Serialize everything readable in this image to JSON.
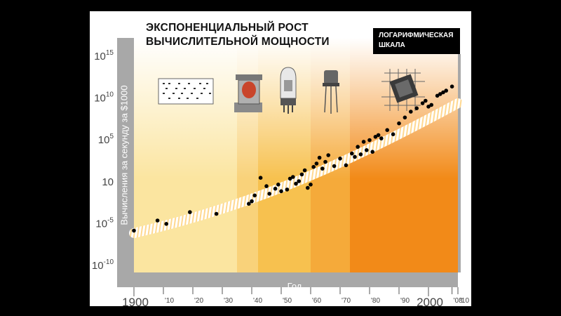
{
  "chart_data": {
    "type": "scatter",
    "title": "ЭКСПОНЕНЦИАЛЬНЫЙ РОСТ",
    "subtitle": "ВЫЧИСЛИТЕЛЬНОЙ МОЩНОСТИ",
    "scale_badge": [
      "ЛОГАРИФМИЧЕСКАЯ",
      "ШКАЛА"
    ],
    "xlabel": "Год",
    "ylabel": "Вычисления за секунду за $1000",
    "y_scale": "log",
    "xlim": [
      1900,
      2010
    ],
    "ylim": [
      -11,
      17
    ],
    "x_ticks": [
      "1900",
      "'10",
      "'20",
      "'30",
      "'40",
      "'50",
      "'60",
      "'70",
      "'80",
      "'90",
      "2000",
      "'08",
      "'10"
    ],
    "y_ticks": [
      {
        "base": "10",
        "exp": "-10"
      },
      {
        "base": "10",
        "exp": "-5"
      },
      {
        "base": "10",
        "exp": ""
      },
      {
        "base": "10",
        "exp": "5"
      },
      {
        "base": "10",
        "exp": "10"
      },
      {
        "base": "10",
        "exp": "15"
      }
    ],
    "eras": [
      "Электромеханика",
      "Реле",
      "Электронные лампы",
      "Транзисторы",
      "Интегральные схемы"
    ],
    "colors": {
      "frame": "#a8a8a8",
      "dots": "#000000",
      "trend": "#ffffff"
    },
    "points": [
      [
        1900,
        -6.0
      ],
      [
        1908,
        -4.8
      ],
      [
        1911,
        -5.2
      ],
      [
        1919,
        -3.8
      ],
      [
        1928,
        -4.0
      ],
      [
        1939,
        -2.8
      ],
      [
        1940,
        -2.5
      ],
      [
        1941,
        -1.8
      ],
      [
        1943,
        0.3
      ],
      [
        1945,
        -0.7
      ],
      [
        1946,
        -1.6
      ],
      [
        1948,
        -1.0
      ],
      [
        1949,
        -0.5
      ],
      [
        1950,
        -1.3
      ],
      [
        1952,
        -1.1
      ],
      [
        1953,
        0.2
      ],
      [
        1954,
        0.4
      ],
      [
        1955,
        -0.4
      ],
      [
        1956,
        -0.1
      ],
      [
        1957,
        0.7
      ],
      [
        1958,
        1.2
      ],
      [
        1959,
        -0.9
      ],
      [
        1960,
        -0.5
      ],
      [
        1961,
        1.6
      ],
      [
        1962,
        2.0
      ],
      [
        1963,
        2.7
      ],
      [
        1964,
        1.4
      ],
      [
        1965,
        2.2
      ],
      [
        1966,
        3.0
      ],
      [
        1968,
        1.7
      ],
      [
        1970,
        2.6
      ],
      [
        1972,
        1.8
      ],
      [
        1974,
        3.2
      ],
      [
        1975,
        2.8
      ],
      [
        1976,
        4.0
      ],
      [
        1977,
        3.1
      ],
      [
        1978,
        4.6
      ],
      [
        1979,
        3.6
      ],
      [
        1980,
        4.8
      ],
      [
        1981,
        3.4
      ],
      [
        1982,
        5.2
      ],
      [
        1983,
        5.4
      ],
      [
        1984,
        5.0
      ],
      [
        1986,
        6.0
      ],
      [
        1988,
        5.5
      ],
      [
        1990,
        6.8
      ],
      [
        1992,
        7.5
      ],
      [
        1994,
        8.2
      ],
      [
        1996,
        8.6
      ],
      [
        1998,
        9.2
      ],
      [
        1999,
        9.5
      ],
      [
        2000,
        8.8
      ],
      [
        2001,
        9.0
      ],
      [
        2003,
        10.1
      ],
      [
        2004,
        10.3
      ],
      [
        2005,
        10.5
      ],
      [
        2006,
        10.7
      ],
      [
        2008,
        11.2
      ]
    ]
  }
}
